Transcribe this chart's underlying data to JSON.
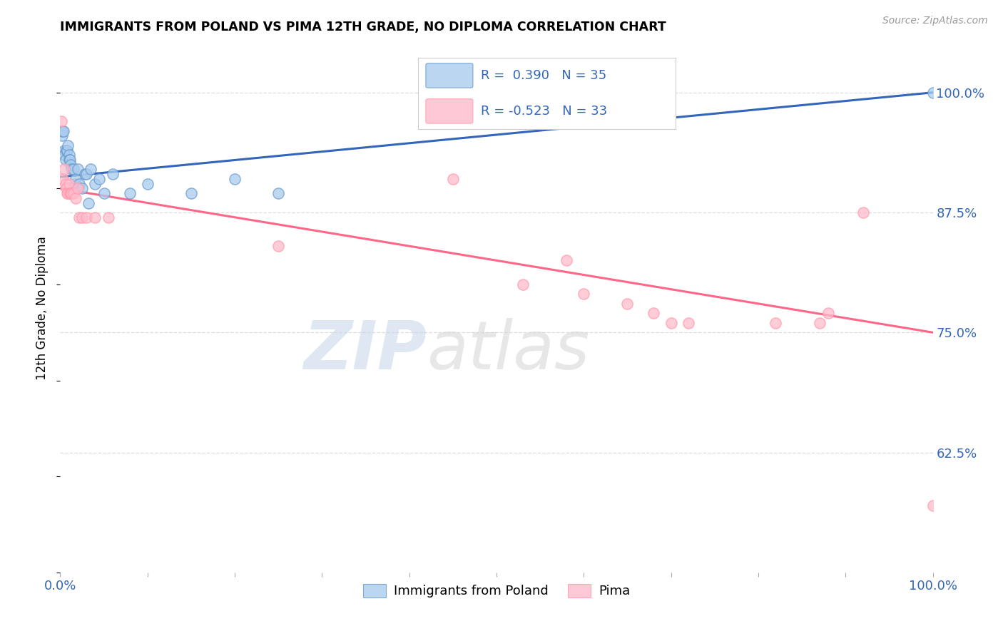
{
  "title": "IMMIGRANTS FROM POLAND VS PIMA 12TH GRADE, NO DIPLOMA CORRELATION CHART",
  "source": "Source: ZipAtlas.com",
  "ylabel": "12th Grade, No Diploma",
  "legend_label1": "Immigrants from Poland",
  "legend_label2": "Pima",
  "R1": 0.39,
  "N1": 35,
  "R2": -0.523,
  "N2": 33,
  "color_blue": "#6699CC",
  "color_blue_fill": "#AACCEE",
  "color_pink": "#FF99AA",
  "color_pink_fill": "#FFBBCC",
  "color_blue_line": "#3366BB",
  "color_pink_line": "#FF6688",
  "watermark_zip": "ZIP",
  "watermark_atlas": "atlas",
  "blue_scatter_x": [
    0.001,
    0.002,
    0.003,
    0.004,
    0.005,
    0.005,
    0.006,
    0.007,
    0.008,
    0.009,
    0.01,
    0.01,
    0.011,
    0.012,
    0.013,
    0.015,
    0.017,
    0.018,
    0.02,
    0.022,
    0.025,
    0.028,
    0.03,
    0.032,
    0.035,
    0.04,
    0.045,
    0.05,
    0.06,
    0.08,
    0.1,
    0.15,
    0.2,
    0.25,
    1.0
  ],
  "blue_scatter_y": [
    0.96,
    0.955,
    0.96,
    0.96,
    0.94,
    0.935,
    0.93,
    0.94,
    0.94,
    0.945,
    0.935,
    0.93,
    0.93,
    0.925,
    0.92,
    0.92,
    0.905,
    0.91,
    0.92,
    0.905,
    0.9,
    0.915,
    0.915,
    0.885,
    0.92,
    0.905,
    0.91,
    0.895,
    0.915,
    0.895,
    0.905,
    0.895,
    0.91,
    0.895,
    1.0
  ],
  "pink_scatter_x": [
    0.001,
    0.003,
    0.005,
    0.006,
    0.007,
    0.008,
    0.009,
    0.01,
    0.011,
    0.012,
    0.013,
    0.015,
    0.018,
    0.02,
    0.022,
    0.025,
    0.03,
    0.04,
    0.055,
    0.25,
    0.45,
    0.53,
    0.58,
    0.6,
    0.65,
    0.68,
    0.7,
    0.72,
    0.82,
    0.87,
    0.88,
    0.92,
    1.0
  ],
  "pink_scatter_y": [
    0.97,
    0.91,
    0.92,
    0.905,
    0.9,
    0.895,
    0.895,
    0.905,
    0.895,
    0.895,
    0.895,
    0.895,
    0.89,
    0.9,
    0.87,
    0.87,
    0.87,
    0.87,
    0.87,
    0.84,
    0.91,
    0.8,
    0.825,
    0.79,
    0.78,
    0.77,
    0.76,
    0.76,
    0.76,
    0.76,
    0.77,
    0.875,
    0.57
  ],
  "blue_line_x": [
    0.0,
    1.0
  ],
  "blue_line_y": [
    0.912,
    1.0
  ],
  "pink_line_x": [
    0.0,
    1.0
  ],
  "pink_line_y": [
    0.9,
    0.75
  ],
  "ytick_values": [
    1.0,
    0.875,
    0.75,
    0.625
  ],
  "ytick_labels": [
    "100.0%",
    "87.5%",
    "75.0%",
    "62.5%"
  ],
  "xlim": [
    0.0,
    1.0
  ],
  "ylim": [
    0.5,
    1.05
  ]
}
